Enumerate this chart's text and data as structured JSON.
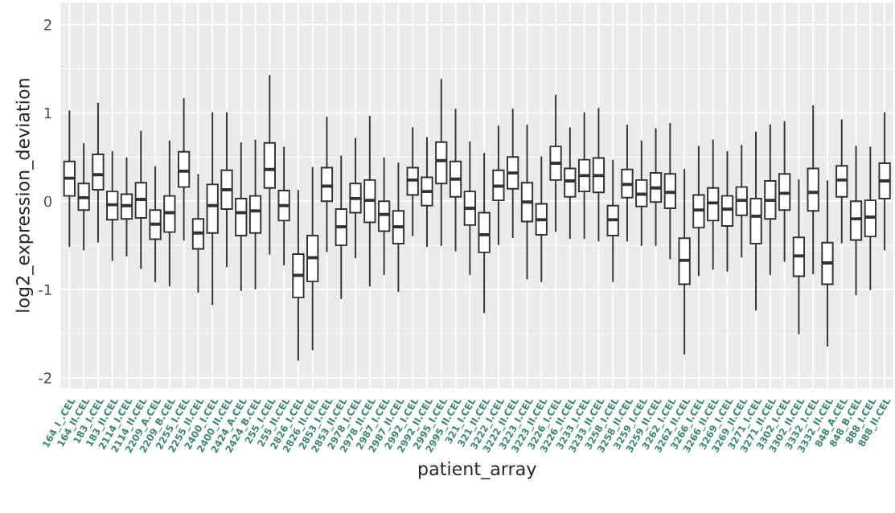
{
  "chart_data": {
    "type": "box",
    "xlabel": "patient_array",
    "ylabel": "log2_expression_deviation",
    "categories": [
      "164_I_.CEL",
      "164_II.CEL",
      "183_I.CEL",
      "183_II.CEL",
      "2114_I.CEL",
      "2114_II.CEL",
      "2209_A.CEL",
      "2209_B.CEL",
      "2255_I.CEL",
      "2255_II.CEL",
      "2400_I.CEL",
      "2400_II.CEL",
      "2424_A.CEL",
      "2424_B.CEL",
      "255_I.CEL",
      "255_II.CEL",
      "2826_I.CEL",
      "2826_II.CEL",
      "2853_I.CEL",
      "2853_II.CEL",
      "2978_I.CEL",
      "2978_II.CEL",
      "2987_I.CEL",
      "2987_II.CEL",
      "2992_I.CEL",
      "2992_II.CEL",
      "2995_I.CEL",
      "2995_II.CEL",
      "321_I.CEL",
      "321_II.CEL",
      "3222_I.CEL",
      "3222_II.CEL",
      "3223_I.CEL",
      "3223_II.CEL",
      "3226_I.CEL",
      "3226_II.CEL",
      "3233_I.CEL",
      "3233_II.CEL",
      "3258_I.CEL",
      "3258_II.CEL",
      "3259_I.CEL",
      "3259_II.CEL",
      "3262_I.CEL",
      "3262_II.CEL",
      "3266_I.CEL",
      "3266_II.CEL",
      "3269_I.CEL",
      "3269_II.CEL",
      "3271_I.CEL",
      "3271_II.CEL",
      "3302_I.CEL",
      "3302_II.CEL",
      "3332_I.CEL",
      "3332_II.CEL",
      "848_A.CEL",
      "848_B.CEL",
      "888_I.CEL",
      "888_II.CEL"
    ],
    "boxes": [
      {
        "low": -0.51,
        "q1": 0.06,
        "median": 0.26,
        "q3": 0.45,
        "high": 1.02
      },
      {
        "low": -0.55,
        "q1": -0.1,
        "median": 0.04,
        "q3": 0.2,
        "high": 0.65
      },
      {
        "low": -0.46,
        "q1": 0.13,
        "median": 0.3,
        "q3": 0.53,
        "high": 1.11
      },
      {
        "low": -0.67,
        "q1": -0.21,
        "median": -0.04,
        "q3": 0.11,
        "high": 0.56
      },
      {
        "low": -0.62,
        "q1": -0.2,
        "median": -0.05,
        "q3": 0.08,
        "high": 0.49
      },
      {
        "low": -0.76,
        "q1": -0.19,
        "median": 0.02,
        "q3": 0.21,
        "high": 0.79
      },
      {
        "low": -0.91,
        "q1": -0.43,
        "median": -0.26,
        "q3": -0.1,
        "high": 0.39
      },
      {
        "low": -0.96,
        "q1": -0.35,
        "median": -0.13,
        "q3": 0.06,
        "high": 0.68
      },
      {
        "low": -0.44,
        "q1": 0.16,
        "median": 0.34,
        "q3": 0.56,
        "high": 1.16
      },
      {
        "low": -1.03,
        "q1": -0.54,
        "median": -0.36,
        "q3": -0.2,
        "high": 0.3
      },
      {
        "low": -1.17,
        "q1": -0.36,
        "median": -0.05,
        "q3": 0.19,
        "high": 1.0
      },
      {
        "low": -0.74,
        "q1": -0.09,
        "median": 0.13,
        "q3": 0.35,
        "high": 1.0
      },
      {
        "low": -1.01,
        "q1": -0.39,
        "median": -0.13,
        "q3": 0.03,
        "high": 0.66
      },
      {
        "low": -0.99,
        "q1": -0.36,
        "median": -0.11,
        "q3": 0.06,
        "high": 0.69
      },
      {
        "low": -0.6,
        "q1": 0.15,
        "median": 0.36,
        "q3": 0.66,
        "high": 1.42
      },
      {
        "low": -0.72,
        "q1": -0.22,
        "median": -0.05,
        "q3": 0.12,
        "high": 0.61
      },
      {
        "low": -1.8,
        "q1": -1.09,
        "median": -0.84,
        "q3": -0.6,
        "high": 0.12
      },
      {
        "low": -1.68,
        "q1": -0.91,
        "median": -0.64,
        "q3": -0.39,
        "high": 0.38
      },
      {
        "low": -0.57,
        "q1": 0.0,
        "median": 0.17,
        "q3": 0.38,
        "high": 0.95
      },
      {
        "low": -1.1,
        "q1": -0.5,
        "median": -0.29,
        "q3": -0.09,
        "high": 0.51
      },
      {
        "low": -0.64,
        "q1": -0.13,
        "median": 0.03,
        "q3": 0.2,
        "high": 0.71
      },
      {
        "low": -0.96,
        "q1": -0.24,
        "median": 0.01,
        "q3": 0.24,
        "high": 0.96
      },
      {
        "low": -0.83,
        "q1": -0.34,
        "median": -0.15,
        "q3": 0.0,
        "high": 0.49
      },
      {
        "low": -1.02,
        "q1": -0.48,
        "median": -0.29,
        "q3": -0.11,
        "high": 0.43
      },
      {
        "low": -0.39,
        "q1": 0.07,
        "median": 0.24,
        "q3": 0.38,
        "high": 0.83
      },
      {
        "low": -0.51,
        "q1": -0.05,
        "median": 0.11,
        "q3": 0.27,
        "high": 0.72
      },
      {
        "low": -0.5,
        "q1": 0.2,
        "median": 0.46,
        "q3": 0.67,
        "high": 1.38
      },
      {
        "low": -0.56,
        "q1": 0.05,
        "median": 0.25,
        "q3": 0.45,
        "high": 1.04
      },
      {
        "low": -0.83,
        "q1": -0.27,
        "median": -0.08,
        "q3": 0.11,
        "high": 0.67
      },
      {
        "low": -1.26,
        "q1": -0.58,
        "median": -0.38,
        "q3": -0.13,
        "high": 0.54
      },
      {
        "low": -0.49,
        "q1": 0.01,
        "median": 0.17,
        "q3": 0.35,
        "high": 0.85
      },
      {
        "low": -0.41,
        "q1": 0.14,
        "median": 0.32,
        "q3": 0.5,
        "high": 1.04
      },
      {
        "low": -0.88,
        "q1": -0.23,
        "median": -0.01,
        "q3": 0.21,
        "high": 0.86
      },
      {
        "low": -0.91,
        "q1": -0.38,
        "median": -0.21,
        "q3": -0.03,
        "high": 0.5
      },
      {
        "low": -0.34,
        "q1": 0.24,
        "median": 0.43,
        "q3": 0.62,
        "high": 1.2
      },
      {
        "low": -0.42,
        "q1": 0.05,
        "median": 0.23,
        "q3": 0.37,
        "high": 0.83
      },
      {
        "low": -0.42,
        "q1": 0.11,
        "median": 0.29,
        "q3": 0.47,
        "high": 1.0
      },
      {
        "low": -0.45,
        "q1": 0.1,
        "median": 0.29,
        "q3": 0.49,
        "high": 1.05
      },
      {
        "low": -0.91,
        "q1": -0.39,
        "median": -0.21,
        "q3": -0.05,
        "high": 0.46
      },
      {
        "low": -0.45,
        "q1": 0.04,
        "median": 0.19,
        "q3": 0.36,
        "high": 0.86
      },
      {
        "low": -0.5,
        "q1": -0.06,
        "median": 0.08,
        "q3": 0.24,
        "high": 0.68
      },
      {
        "low": -0.5,
        "q1": -0.01,
        "median": 0.15,
        "q3": 0.32,
        "high": 0.82
      },
      {
        "low": -0.65,
        "q1": -0.08,
        "median": 0.1,
        "q3": 0.31,
        "high": 0.88
      },
      {
        "low": -1.73,
        "q1": -0.94,
        "median": -0.67,
        "q3": -0.42,
        "high": 0.36
      },
      {
        "low": -0.84,
        "q1": -0.3,
        "median": -0.1,
        "q3": 0.07,
        "high": 0.62
      },
      {
        "low": -0.77,
        "q1": -0.22,
        "median": -0.02,
        "q3": 0.15,
        "high": 0.69
      },
      {
        "low": -0.79,
        "q1": -0.28,
        "median": -0.09,
        "q3": 0.06,
        "high": 0.56
      },
      {
        "low": -0.63,
        "q1": -0.16,
        "median": 0.01,
        "q3": 0.16,
        "high": 0.63
      },
      {
        "low": -1.23,
        "q1": -0.48,
        "median": -0.17,
        "q3": 0.03,
        "high": 0.78
      },
      {
        "low": -0.83,
        "q1": -0.2,
        "median": 0.01,
        "q3": 0.23,
        "high": 0.86
      },
      {
        "low": -0.68,
        "q1": -0.1,
        "median": 0.09,
        "q3": 0.31,
        "high": 0.9
      },
      {
        "low": -1.5,
        "q1": -0.85,
        "median": -0.62,
        "q3": -0.41,
        "high": 0.24
      },
      {
        "low": -0.82,
        "q1": -0.11,
        "median": 0.1,
        "q3": 0.37,
        "high": 1.08
      },
      {
        "low": -1.64,
        "q1": -0.94,
        "median": -0.7,
        "q3": -0.47,
        "high": 0.23
      },
      {
        "low": -0.47,
        "q1": 0.05,
        "median": 0.24,
        "q3": 0.4,
        "high": 0.92
      },
      {
        "low": -1.06,
        "q1": -0.44,
        "median": -0.2,
        "q3": 0.0,
        "high": 0.62
      },
      {
        "low": -1.0,
        "q1": -0.4,
        "median": -0.18,
        "q3": 0.01,
        "high": 0.61
      },
      {
        "low": -0.55,
        "q1": 0.03,
        "median": 0.23,
        "q3": 0.43,
        "high": 1.0
      }
    ],
    "ylim": [
      -2.12,
      2.25
    ],
    "yticks": [
      -2,
      -1,
      0,
      1,
      2
    ],
    "grid": true
  }
}
